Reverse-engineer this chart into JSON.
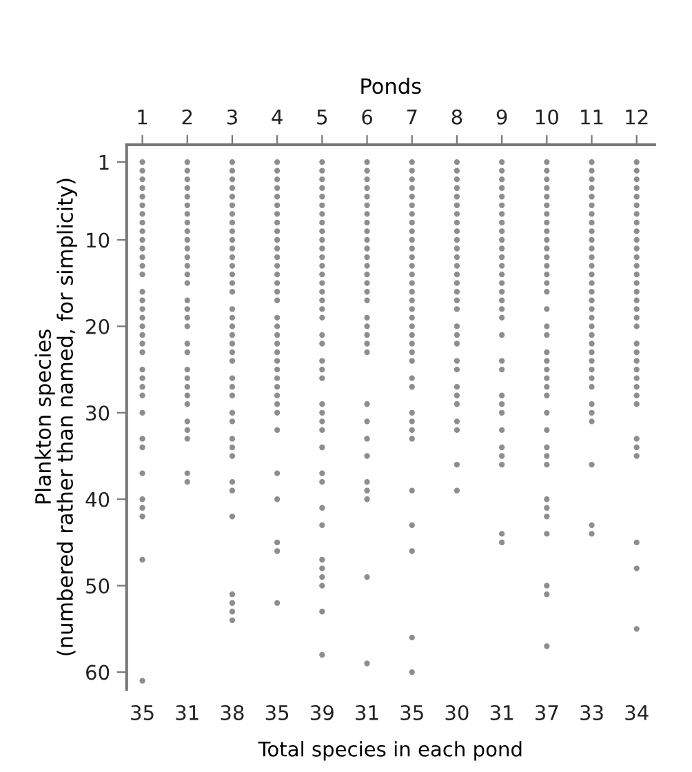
{
  "chart_data": {
    "type": "scatter",
    "xlabel": "Ponds",
    "ylabel": "Plankton species\n(numbered rather than named, for simplicity)",
    "categories": [
      "1",
      "2",
      "3",
      "4",
      "5",
      "6",
      "7",
      "8",
      "9",
      "10",
      "11",
      "12"
    ],
    "annotations": [
      "35",
      "31",
      "38",
      "35",
      "39",
      "31",
      "35",
      "30",
      "31",
      "37",
      "33",
      "34",
      "Total species in each pond"
    ],
    "ylim": [
      62,
      -1
    ],
    "yticks": [
      1,
      10,
      20,
      30,
      40,
      50,
      60
    ],
    "grid": false,
    "marker": "circle",
    "series": [
      {
        "color": "#8e8e8e",
        "x": [
          "1",
          "1",
          "1",
          "1",
          "1",
          "1",
          "1",
          "1",
          "1",
          "1",
          "1",
          "1",
          "1",
          "1",
          "1",
          "1",
          "1",
          "1",
          "1",
          "1",
          "1",
          "1",
          "1",
          "1",
          "1",
          "1",
          "1",
          "1",
          "1",
          "1",
          "1",
          "1",
          "1",
          "1",
          "1"
        ],
        "values": [
          1,
          2,
          3,
          4,
          5,
          6,
          7,
          8,
          9,
          10,
          11,
          12,
          13,
          14,
          16,
          17,
          18,
          19,
          20,
          21,
          22,
          23,
          25,
          26,
          27,
          28,
          30,
          33,
          34,
          37,
          40,
          41,
          42,
          47,
          61
        ]
      },
      {
        "color": "#8e8e8e",
        "x": [
          "2",
          "2",
          "2",
          "2",
          "2",
          "2",
          "2",
          "2",
          "2",
          "2",
          "2",
          "2",
          "2",
          "2",
          "2",
          "2",
          "2",
          "2",
          "2",
          "2",
          "2",
          "2",
          "2",
          "2",
          "2",
          "2",
          "2",
          "2",
          "2",
          "2",
          "2"
        ],
        "values": [
          1,
          2,
          3,
          4,
          5,
          6,
          7,
          8,
          9,
          10,
          11,
          12,
          13,
          14,
          15,
          17,
          18,
          19,
          20,
          22,
          23,
          25,
          26,
          27,
          28,
          29,
          31,
          32,
          33,
          37,
          38
        ]
      },
      {
        "color": "#8e8e8e",
        "x": [
          "3",
          "3",
          "3",
          "3",
          "3",
          "3",
          "3",
          "3",
          "3",
          "3",
          "3",
          "3",
          "3",
          "3",
          "3",
          "3",
          "3",
          "3",
          "3",
          "3",
          "3",
          "3",
          "3",
          "3",
          "3",
          "3",
          "3",
          "3",
          "3",
          "3",
          "3",
          "3",
          "3",
          "3",
          "3",
          "3",
          "3",
          "3"
        ],
        "values": [
          1,
          2,
          3,
          4,
          5,
          6,
          7,
          8,
          9,
          10,
          11,
          12,
          13,
          14,
          15,
          16,
          18,
          19,
          20,
          21,
          22,
          23,
          24,
          26,
          27,
          28,
          30,
          31,
          33,
          34,
          35,
          38,
          39,
          42,
          51,
          52,
          53,
          54
        ]
      },
      {
        "color": "#8e8e8e",
        "x": [
          "4",
          "4",
          "4",
          "4",
          "4",
          "4",
          "4",
          "4",
          "4",
          "4",
          "4",
          "4",
          "4",
          "4",
          "4",
          "4",
          "4",
          "4",
          "4",
          "4",
          "4",
          "4",
          "4",
          "4",
          "4",
          "4",
          "4",
          "4",
          "4",
          "4",
          "4",
          "4",
          "4",
          "4",
          "4"
        ],
        "values": [
          1,
          2,
          3,
          4,
          5,
          6,
          7,
          8,
          9,
          10,
          11,
          12,
          13,
          14,
          15,
          16,
          17,
          19,
          20,
          21,
          22,
          23,
          24,
          25,
          26,
          27,
          28,
          29,
          30,
          32,
          37,
          40,
          45,
          46,
          52
        ]
      },
      {
        "color": "#8e8e8e",
        "x": [
          "5",
          "5",
          "5",
          "5",
          "5",
          "5",
          "5",
          "5",
          "5",
          "5",
          "5",
          "5",
          "5",
          "5",
          "5",
          "5",
          "5",
          "5",
          "5",
          "5",
          "5",
          "5",
          "5",
          "5",
          "5",
          "5",
          "5",
          "5",
          "5",
          "5",
          "5",
          "5",
          "5",
          "5",
          "5",
          "5",
          "5",
          "5",
          "5"
        ],
        "values": [
          1,
          2,
          3,
          4,
          5,
          6,
          7,
          8,
          9,
          10,
          11,
          12,
          13,
          14,
          15,
          16,
          17,
          18,
          19,
          21,
          22,
          24,
          25,
          26,
          29,
          30,
          31,
          32,
          34,
          37,
          38,
          41,
          43,
          47,
          48,
          49,
          50,
          53,
          58
        ]
      },
      {
        "color": "#8e8e8e",
        "x": [
          "6",
          "6",
          "6",
          "6",
          "6",
          "6",
          "6",
          "6",
          "6",
          "6",
          "6",
          "6",
          "6",
          "6",
          "6",
          "6",
          "6",
          "6",
          "6",
          "6",
          "6",
          "6",
          "6",
          "6",
          "6",
          "6",
          "6",
          "6",
          "6",
          "6",
          "6"
        ],
        "values": [
          1,
          2,
          3,
          4,
          5,
          6,
          7,
          8,
          9,
          10,
          11,
          12,
          13,
          14,
          15,
          16,
          17,
          19,
          20,
          21,
          22,
          23,
          29,
          31,
          33,
          35,
          38,
          39,
          40,
          49,
          59
        ]
      },
      {
        "color": "#8e8e8e",
        "x": [
          "7",
          "7",
          "7",
          "7",
          "7",
          "7",
          "7",
          "7",
          "7",
          "7",
          "7",
          "7",
          "7",
          "7",
          "7",
          "7",
          "7",
          "7",
          "7",
          "7",
          "7",
          "7",
          "7",
          "7",
          "7",
          "7",
          "7",
          "7",
          "7",
          "7",
          "7",
          "7",
          "7",
          "7",
          "7"
        ],
        "values": [
          1,
          2,
          3,
          4,
          5,
          6,
          7,
          8,
          9,
          10,
          11,
          12,
          13,
          14,
          15,
          16,
          17,
          18,
          19,
          20,
          21,
          22,
          23,
          24,
          26,
          27,
          30,
          31,
          32,
          33,
          39,
          43,
          46,
          56,
          60
        ]
      },
      {
        "color": "#8e8e8e",
        "x": [
          "8",
          "8",
          "8",
          "8",
          "8",
          "8",
          "8",
          "8",
          "8",
          "8",
          "8",
          "8",
          "8",
          "8",
          "8",
          "8",
          "8",
          "8",
          "8",
          "8",
          "8",
          "8",
          "8",
          "8",
          "8",
          "8",
          "8",
          "8",
          "8",
          "8"
        ],
        "values": [
          1,
          2,
          3,
          4,
          5,
          6,
          7,
          8,
          9,
          10,
          11,
          12,
          13,
          14,
          15,
          16,
          17,
          18,
          20,
          21,
          22,
          24,
          25,
          27,
          28,
          29,
          31,
          32,
          36,
          39
        ]
      },
      {
        "color": "#8e8e8e",
        "x": [
          "9",
          "9",
          "9",
          "9",
          "9",
          "9",
          "9",
          "9",
          "9",
          "9",
          "9",
          "9",
          "9",
          "9",
          "9",
          "9",
          "9",
          "9",
          "9",
          "9",
          "9",
          "9",
          "9",
          "9",
          "9",
          "9",
          "9",
          "9",
          "9",
          "9",
          "9"
        ],
        "values": [
          1,
          2,
          3,
          4,
          5,
          6,
          7,
          8,
          9,
          10,
          11,
          12,
          13,
          14,
          15,
          16,
          17,
          18,
          19,
          21,
          24,
          25,
          28,
          29,
          30,
          32,
          34,
          35,
          36,
          44,
          45
        ]
      },
      {
        "color": "#8e8e8e",
        "x": [
          "10",
          "10",
          "10",
          "10",
          "10",
          "10",
          "10",
          "10",
          "10",
          "10",
          "10",
          "10",
          "10",
          "10",
          "10",
          "10",
          "10",
          "10",
          "10",
          "10",
          "10",
          "10",
          "10",
          "10",
          "10",
          "10",
          "10",
          "10",
          "10",
          "10",
          "10",
          "10",
          "10",
          "10",
          "10",
          "10",
          "10"
        ],
        "values": [
          1,
          2,
          3,
          4,
          5,
          6,
          7,
          8,
          9,
          10,
          11,
          12,
          13,
          14,
          15,
          16,
          18,
          20,
          21,
          23,
          24,
          25,
          26,
          27,
          28,
          30,
          32,
          34,
          35,
          36,
          40,
          41,
          42,
          44,
          50,
          51,
          57
        ]
      },
      {
        "color": "#8e8e8e",
        "x": [
          "11",
          "11",
          "11",
          "11",
          "11",
          "11",
          "11",
          "11",
          "11",
          "11",
          "11",
          "11",
          "11",
          "11",
          "11",
          "11",
          "11",
          "11",
          "11",
          "11",
          "11",
          "11",
          "11",
          "11",
          "11",
          "11",
          "11",
          "11",
          "11",
          "11",
          "11",
          "11",
          "11"
        ],
        "values": [
          1,
          2,
          3,
          4,
          5,
          6,
          7,
          8,
          9,
          10,
          11,
          12,
          13,
          14,
          15,
          16,
          17,
          18,
          19,
          20,
          21,
          22,
          23,
          24,
          25,
          26,
          27,
          29,
          30,
          31,
          36,
          43,
          44
        ]
      },
      {
        "color": "#8e8e8e",
        "x": [
          "12",
          "12",
          "12",
          "12",
          "12",
          "12",
          "12",
          "12",
          "12",
          "12",
          "12",
          "12",
          "12",
          "12",
          "12",
          "12",
          "12",
          "12",
          "12",
          "12",
          "12",
          "12",
          "12",
          "12",
          "12",
          "12",
          "12",
          "12",
          "12",
          "12",
          "12",
          "12",
          "12",
          "12"
        ],
        "values": [
          1,
          2,
          3,
          4,
          5,
          6,
          7,
          8,
          9,
          10,
          11,
          12,
          13,
          14,
          15,
          16,
          17,
          18,
          19,
          20,
          22,
          23,
          24,
          25,
          26,
          27,
          28,
          29,
          33,
          34,
          35,
          45,
          48,
          55
        ]
      }
    ]
  }
}
